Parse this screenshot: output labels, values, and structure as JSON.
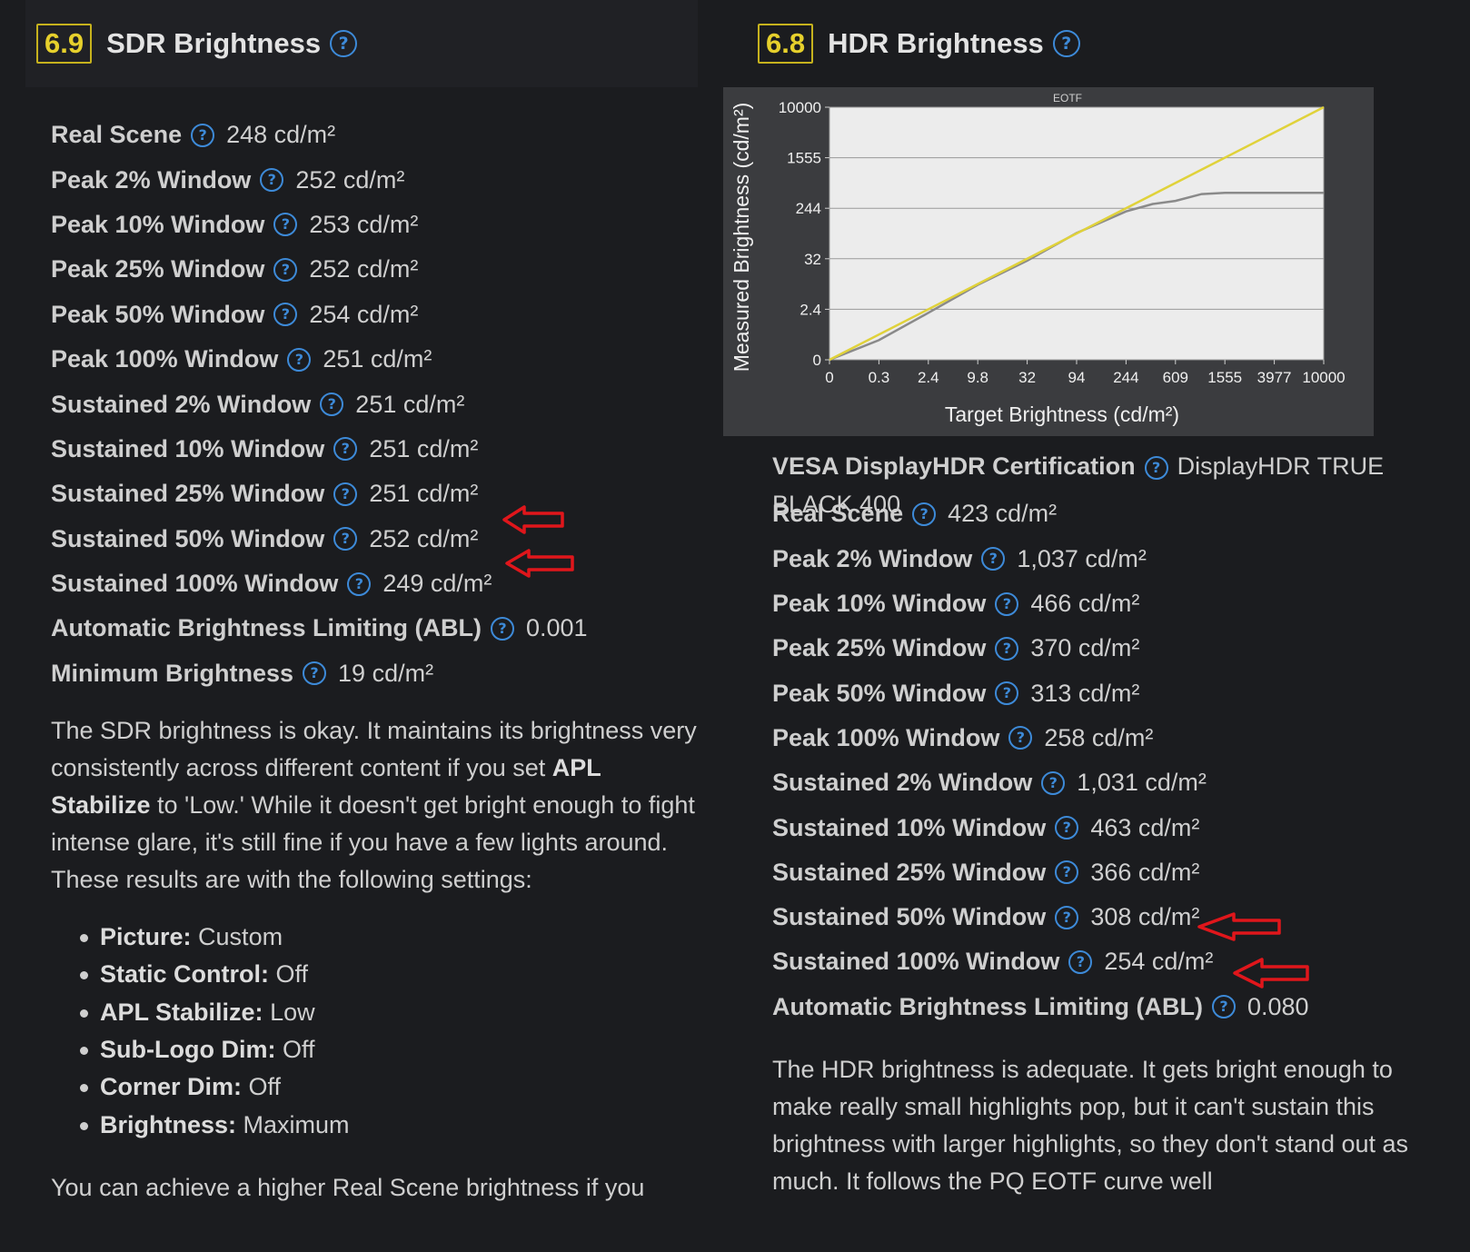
{
  "sdr": {
    "score": "6.9",
    "title": "SDR Brightness",
    "rows": [
      {
        "label": "Real Scene",
        "value": "248 cd/m²"
      },
      {
        "label": "Peak 2% Window",
        "value": "252 cd/m²"
      },
      {
        "label": "Peak 10% Window",
        "value": "253 cd/m²"
      },
      {
        "label": "Peak 25% Window",
        "value": "252 cd/m²"
      },
      {
        "label": "Peak 50% Window",
        "value": "254 cd/m²"
      },
      {
        "label": "Peak 100% Window",
        "value": "251 cd/m²"
      },
      {
        "label": "Sustained 2% Window",
        "value": "251 cd/m²"
      },
      {
        "label": "Sustained 10% Window",
        "value": "251 cd/m²"
      },
      {
        "label": "Sustained 25% Window",
        "value": "251 cd/m²"
      },
      {
        "label": "Sustained 50% Window",
        "value": "252 cd/m²"
      },
      {
        "label": "Sustained 100% Window",
        "value": "249 cd/m²"
      },
      {
        "label": "Automatic Brightness Limiting (ABL)",
        "value": "0.001"
      },
      {
        "label": "Minimum Brightness",
        "value": "19 cd/m²"
      }
    ],
    "desc_1": "The SDR brightness is okay. It maintains its brightness very consistently across different content if you set ",
    "desc_bold": "APL Stabilize",
    "desc_2": " to 'Low.' While it doesn't get bright enough to fight intense glare, it's still fine if you have a few lights around. These results are with the following settings:",
    "settings": [
      {
        "label": "Picture:",
        "value": "Custom"
      },
      {
        "label": "Static Control:",
        "value": "Off"
      },
      {
        "label": "APL Stabilize:",
        "value": "Low"
      },
      {
        "label": "Sub-Logo Dim:",
        "value": "Off"
      },
      {
        "label": "Corner Dim:",
        "value": "Off"
      },
      {
        "label": "Brightness:",
        "value": "Maximum"
      }
    ],
    "footer_partial": "You can achieve a higher Real Scene brightness if you"
  },
  "hdr": {
    "score": "6.8",
    "title": "HDR Brightness",
    "cert_label": "VESA DisplayHDR Certification",
    "cert_value": "DisplayHDR TRUE BLACK 400",
    "rows": [
      {
        "label": "Real Scene",
        "value": "423 cd/m²"
      },
      {
        "label": "Peak 2% Window",
        "value": "1,037 cd/m²"
      },
      {
        "label": "Peak 10% Window",
        "value": "466 cd/m²"
      },
      {
        "label": "Peak 25% Window",
        "value": "370 cd/m²"
      },
      {
        "label": "Peak 50% Window",
        "value": "313 cd/m²"
      },
      {
        "label": "Peak 100% Window",
        "value": "258 cd/m²"
      },
      {
        "label": "Sustained 2% Window",
        "value": "1,031 cd/m²"
      },
      {
        "label": "Sustained 10% Window",
        "value": "463 cd/m²"
      },
      {
        "label": "Sustained 25% Window",
        "value": "366 cd/m²"
      },
      {
        "label": "Sustained 50% Window",
        "value": "308 cd/m²"
      },
      {
        "label": "Sustained 100% Window",
        "value": "254 cd/m²"
      },
      {
        "label": "Automatic Brightness Limiting (ABL)",
        "value": "0.080"
      }
    ],
    "desc": "The HDR brightness is adequate. It gets bright enough to make really small highlights pop, but it can't sustain this brightness with larger highlights, so they don't stand out as much. It follows the PQ EOTF curve well"
  },
  "chart_data": {
    "type": "line",
    "title": "EOTF",
    "xlabel": "Target Brightness (cd/m²)",
    "ylabel": "Measured Brightness (cd/m²)",
    "x_ticks": [
      "0",
      "0.3",
      "2.4",
      "9.8",
      "32",
      "94",
      "244",
      "609",
      "1555",
      "3977",
      "10000"
    ],
    "y_ticks": [
      "0",
      "2.4",
      "32",
      "244",
      "1555",
      "10000"
    ],
    "x_scale": "PQ (perceptual)",
    "grid": true,
    "series": [
      {
        "color": "#e0d23a",
        "x": [
          0,
          10000
        ],
        "y": [
          0,
          10000
        ]
      },
      {
        "color": "#8a8a8a",
        "x": [
          0,
          0.3,
          2.4,
          9.8,
          32,
          94,
          244,
          400,
          609,
          1000,
          1555,
          3977,
          10000
        ],
        "y": [
          0,
          0.25,
          1.9,
          8.5,
          29,
          90,
          215,
          285,
          320,
          410,
          430,
          430,
          430
        ]
      }
    ]
  },
  "colors": {
    "accent": "#3d8ad8",
    "score_border": "#c6b21d",
    "annotation_arrow": "#e0161b"
  },
  "icons": {
    "help": "question-circle-icon",
    "annotation": "arrow-left-icon"
  }
}
